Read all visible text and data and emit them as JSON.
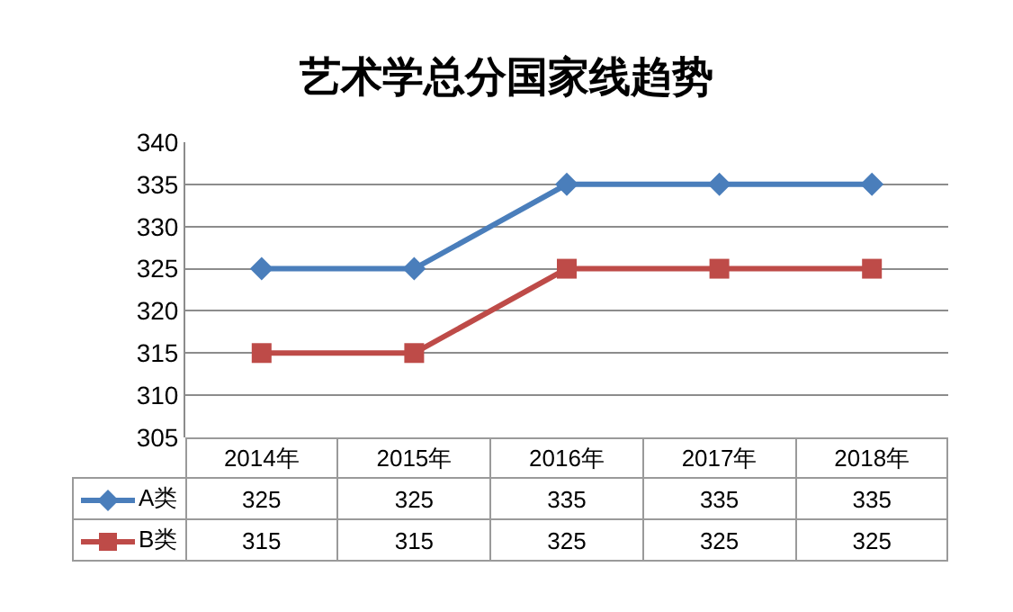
{
  "chart_data": {
    "type": "line",
    "title": "艺术学总分国家线趋势",
    "categories": [
      "2014年",
      "2015年",
      "2016年",
      "2017年",
      "2018年"
    ],
    "series": [
      {
        "name": "A类",
        "color": "#4a7ebb",
        "marker": "diamond",
        "values": [
          325,
          325,
          335,
          335,
          335
        ]
      },
      {
        "name": "B类",
        "color": "#be4b48",
        "marker": "square",
        "values": [
          315,
          315,
          325,
          325,
          325
        ]
      }
    ],
    "ylim": [
      305,
      340
    ],
    "yticks": [
      305,
      310,
      315,
      320,
      325,
      330,
      335,
      340
    ],
    "grid": "y",
    "data_labels": true,
    "legend": "bottom left",
    "tick_labels": "y"
  }
}
